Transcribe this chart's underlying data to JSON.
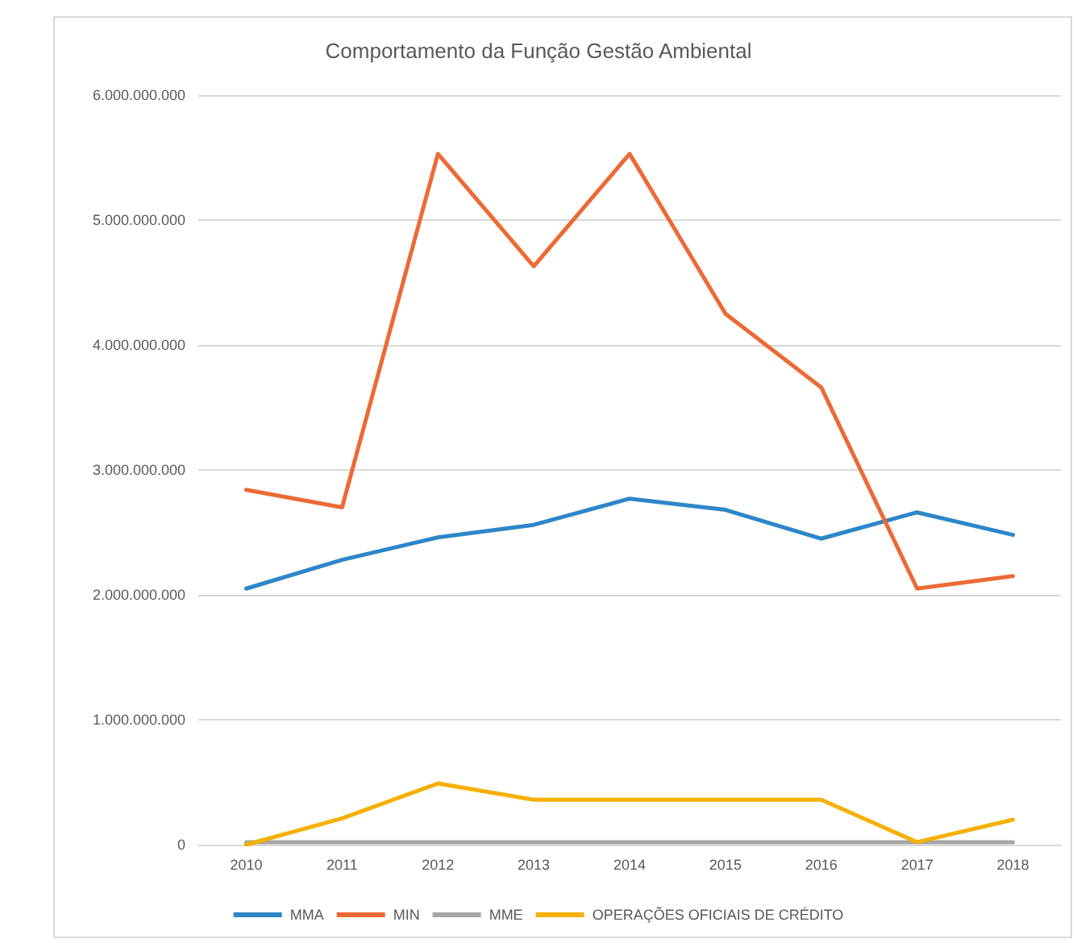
{
  "chart_data": {
    "type": "line",
    "title": "Comportamento da Função Gestão Ambiental",
    "categories": [
      "2010",
      "2011",
      "2012",
      "2013",
      "2014",
      "2015",
      "2016",
      "2017",
      "2018"
    ],
    "series": [
      {
        "name": "MMA",
        "color": "#2e86c8",
        "values": [
          2050000000,
          2280000000,
          2460000000,
          2560000000,
          2770000000,
          2680000000,
          2450000000,
          2660000000,
          2480000000
        ]
      },
      {
        "name": "MIN",
        "color": "#ec6a36",
        "values": [
          2840000000,
          2700000000,
          5530000000,
          4630000000,
          5530000000,
          4250000000,
          3660000000,
          2050000000,
          2150000000
        ]
      },
      {
        "name": "MME",
        "color": "#a5a5a5",
        "values": [
          20000000,
          20000000,
          20000000,
          20000000,
          20000000,
          20000000,
          20000000,
          20000000,
          20000000
        ]
      },
      {
        "name": "OPERAÇÕES OFICIAIS DE CRÉDITO",
        "color": "#f5b000",
        "values": [
          0,
          210000000,
          490000000,
          360000000,
          360000000,
          360000000,
          360000000,
          20000000,
          200000000
        ]
      }
    ],
    "ylim": [
      0,
      6000000000
    ],
    "yticks": [
      0,
      {
        "value": 1000000000,
        "label": "1.000.000.000"
      },
      {
        "value": 2000000000,
        "label": "2.000.000.000"
      },
      {
        "value": 3000000000,
        "label": "3.000.000.000"
      },
      {
        "value": 4000000000,
        "label": "4.000.000.000"
      },
      {
        "value": 5000000000,
        "label": "5.000.000.000"
      },
      {
        "value": 6000000000,
        "label": "6.000.000.000"
      }
    ],
    "grid": "y",
    "legend": "bottom",
    "marker": "none",
    "line_style": "solid"
  }
}
